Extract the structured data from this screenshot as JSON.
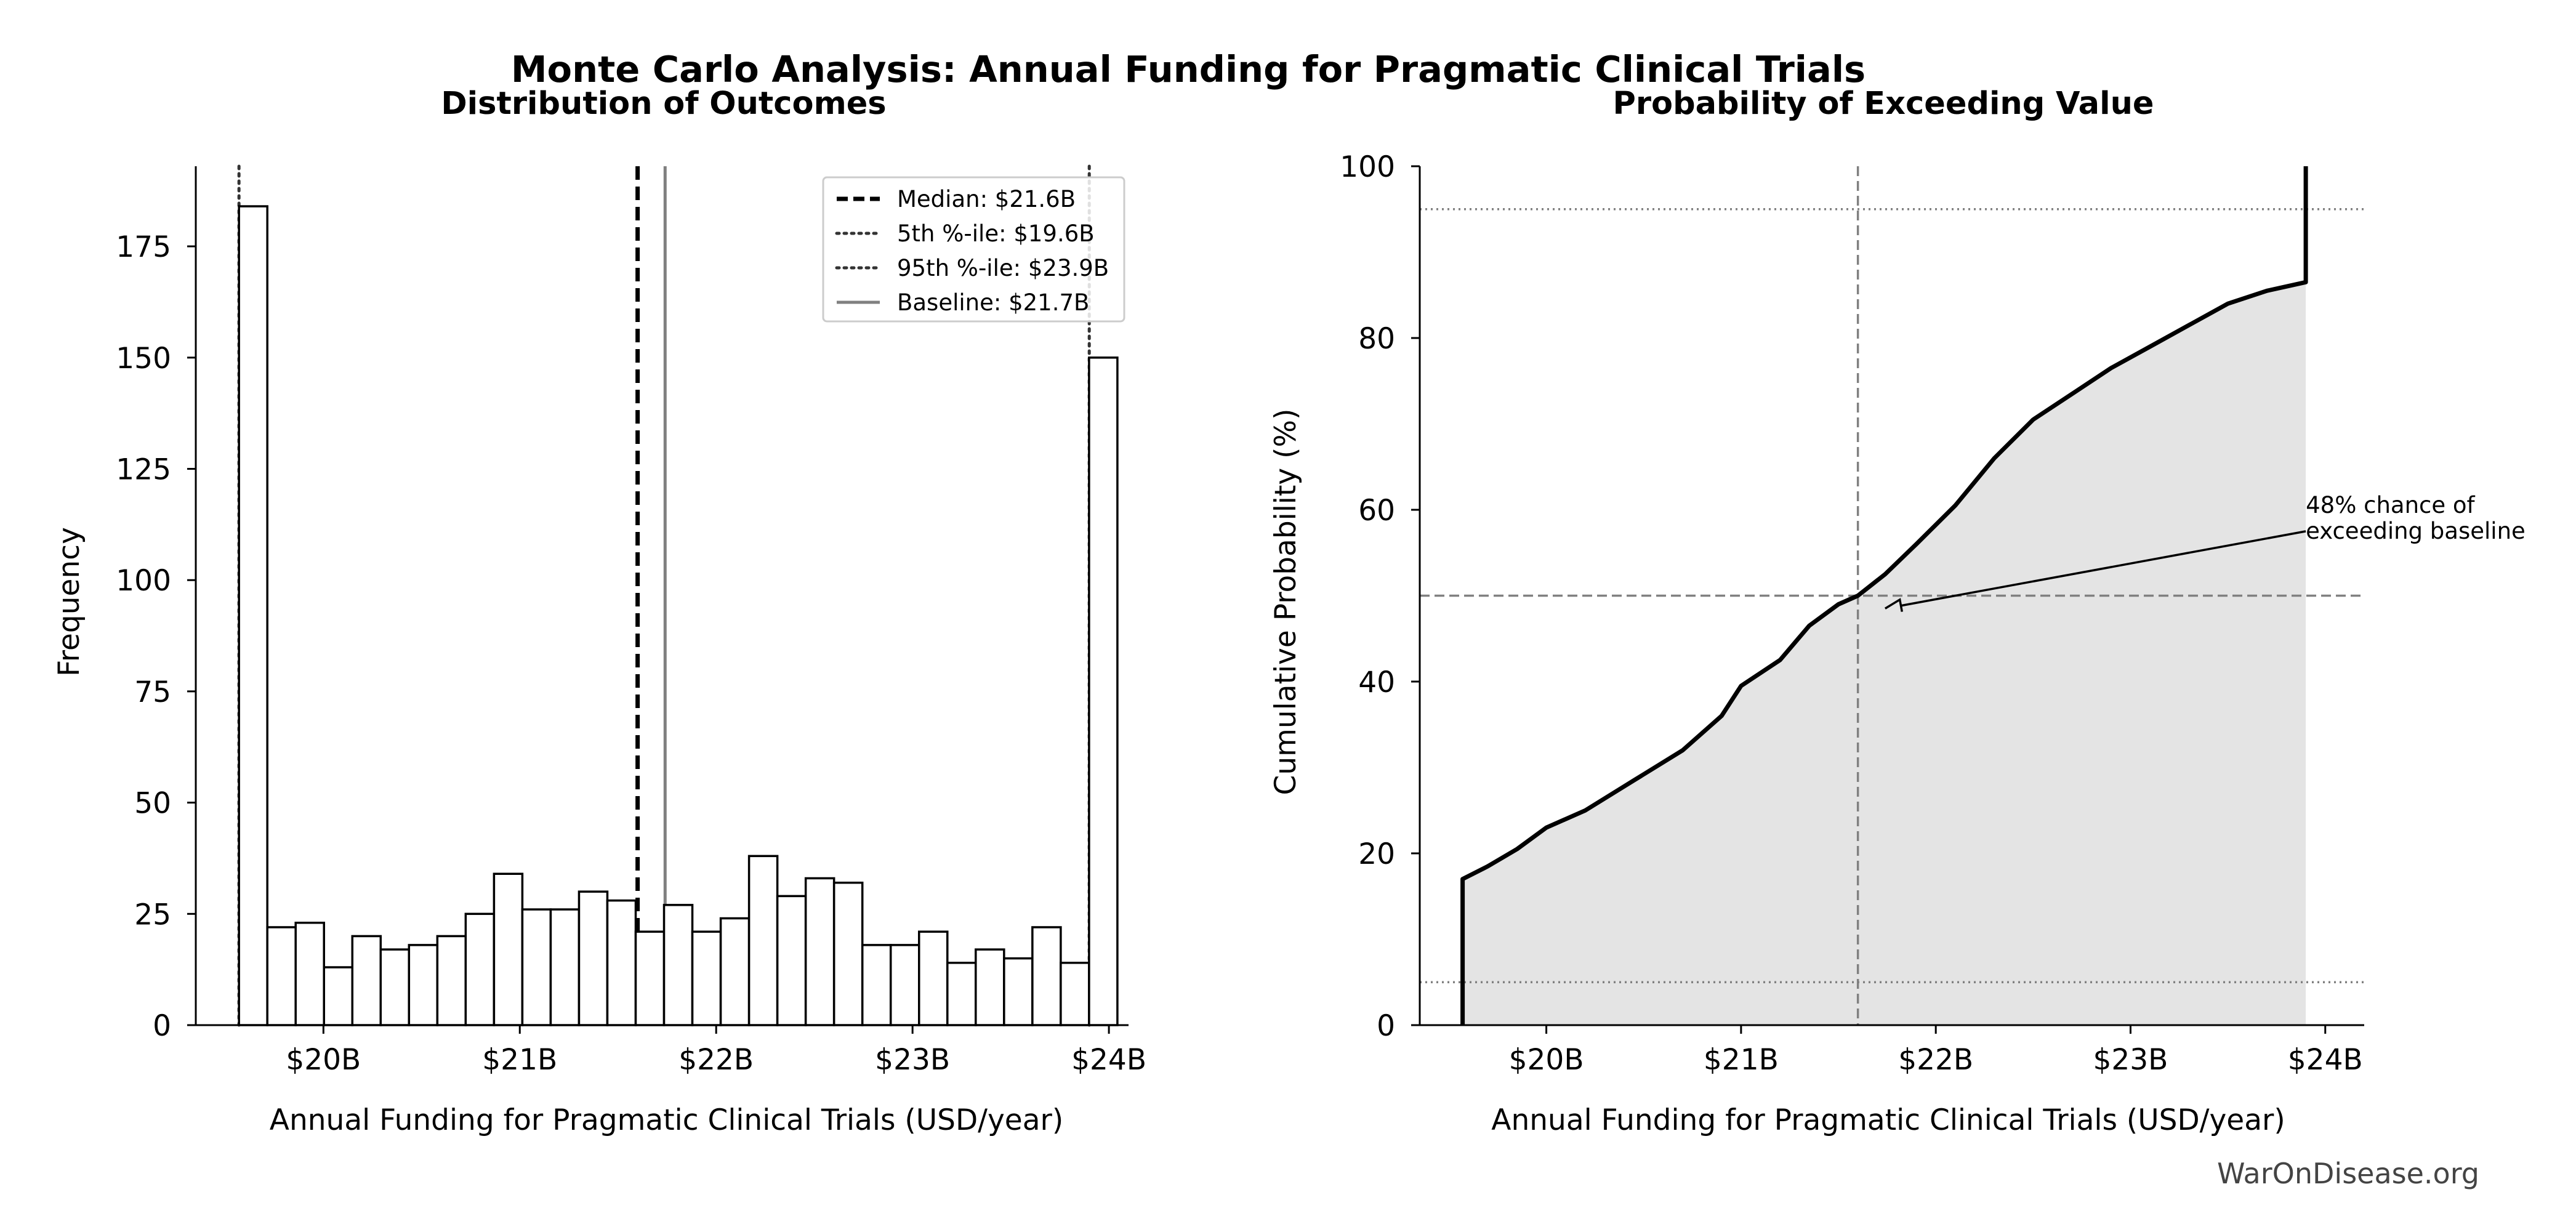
{
  "title": "Monte Carlo Analysis: Annual Funding for Pragmatic Clinical Trials",
  "watermark": "WarOnDisease.org",
  "colors": {
    "black": "#000000",
    "gray": "#808080",
    "fill": "#e4e4e4",
    "bar_fill": "#ffffff"
  },
  "chart_data": [
    {
      "type": "bar",
      "subtitle": "Distribution of Outcomes",
      "xlabel": "Annual Funding for Pragmatic Clinical Trials (USD/year)",
      "ylabel": "Frequency",
      "xlim": [
        19.35,
        24.1
      ],
      "ylim": [
        0,
        193
      ],
      "xticks": [
        20,
        21,
        22,
        23,
        24
      ],
      "xtick_labels": [
        "$20B",
        "$21B",
        "$22B",
        "$23B",
        "$24B"
      ],
      "yticks": [
        0,
        25,
        50,
        75,
        100,
        125,
        150,
        175
      ],
      "ytick_labels": [
        "0",
        "25",
        "50",
        "75",
        "100",
        "125",
        "150",
        "175"
      ],
      "bin_start": 19.57,
      "bin_width": 0.1443,
      "values": [
        184,
        22,
        23,
        13,
        20,
        17,
        18,
        20,
        25,
        34,
        26,
        26,
        30,
        28,
        21,
        27,
        21,
        24,
        38,
        29,
        33,
        32,
        18,
        18,
        21,
        14,
        17,
        15,
        22,
        14,
        150
      ],
      "reference_lines": [
        {
          "label": "Median: $21.6B",
          "x": 21.6,
          "style": "dashed",
          "color": "#000000"
        },
        {
          "label": "5th %-ile: $19.6B",
          "x": 19.57,
          "style": "dotted",
          "color": "#333333"
        },
        {
          "label": "95th %-ile: $23.9B",
          "x": 23.9,
          "style": "dotted",
          "color": "#333333"
        },
        {
          "label": "Baseline: $21.7B",
          "x": 21.74,
          "style": "solid",
          "color": "#808080"
        }
      ],
      "legend_position": "top-right",
      "grid": false
    },
    {
      "type": "line",
      "subtitle": "Probability of Exceeding Value",
      "xlabel": "Annual Funding for Pragmatic Clinical Trials (USD/year)",
      "ylabel": "Cumulative Probability (%)",
      "xlim": [
        19.35,
        24.2
      ],
      "ylim": [
        0,
        100
      ],
      "xticks": [
        20,
        21,
        22,
        23,
        24
      ],
      "xtick_labels": [
        "$20B",
        "$21B",
        "$22B",
        "$23B",
        "$24B"
      ],
      "yticks": [
        0,
        20,
        40,
        60,
        80,
        100
      ],
      "ytick_labels": [
        "0",
        "20",
        "40",
        "60",
        "80",
        "100"
      ],
      "x": [
        19.57,
        19.57,
        19.7,
        19.85,
        20.0,
        20.2,
        20.45,
        20.7,
        20.9,
        21.0,
        21.2,
        21.35,
        21.5,
        21.6,
        21.74,
        21.9,
        22.1,
        22.3,
        22.5,
        22.7,
        22.9,
        23.1,
        23.3,
        23.5,
        23.7,
        23.8,
        23.9,
        23.9
      ],
      "y": [
        0,
        17,
        18.5,
        20.5,
        23,
        25,
        28.5,
        32,
        36,
        39.5,
        42.5,
        46.5,
        49,
        50,
        52.5,
        56,
        60.5,
        66,
        70.5,
        73.5,
        76.5,
        79,
        81.5,
        84,
        85.5,
        86,
        86.5,
        100
      ],
      "reference_lines": [
        {
          "orientation": "horizontal",
          "y": 95,
          "style": "dotted",
          "color": "#808080"
        },
        {
          "orientation": "horizontal",
          "y": 5,
          "style": "dotted",
          "color": "#808080"
        },
        {
          "orientation": "horizontal",
          "y": 50,
          "style": "dashed",
          "color": "#808080"
        },
        {
          "orientation": "vertical",
          "x": 21.6,
          "style": "dashed",
          "color": "#808080"
        }
      ],
      "annotation": {
        "lines": [
          "48% chance of",
          "exceeding baseline"
        ],
        "target_x": 21.74,
        "target_y": 48.5,
        "text_x": 23.9,
        "text_y": 57.5
      },
      "grid": false
    }
  ]
}
